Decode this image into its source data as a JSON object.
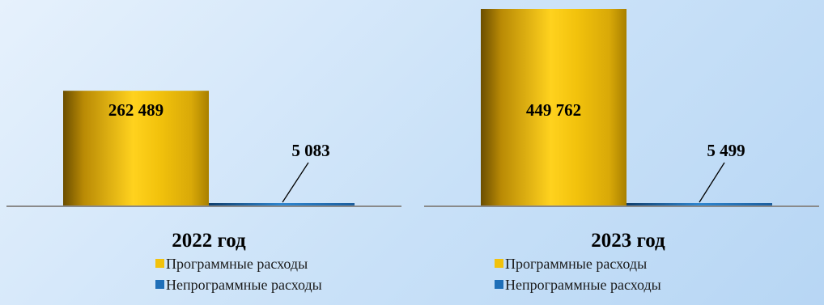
{
  "colors": {
    "programmatic": "#f2c20c",
    "non_programmatic": "#1f6fb8",
    "baseline": "#8a8a8a"
  },
  "chart_data": [
    {
      "type": "bar",
      "title": "2022 год",
      "categories": [
        "Программные расходы",
        "Непрограммные расходы"
      ],
      "values": [
        262489,
        5083
      ],
      "data_labels": [
        "262 489",
        "5 083"
      ],
      "legend": [
        "Программные расходы",
        "Непрограммные расходы"
      ]
    },
    {
      "type": "bar",
      "title": "2023 год",
      "categories": [
        "Программные расходы",
        "Непрограммные расходы"
      ],
      "values": [
        449762,
        5499
      ],
      "data_labels": [
        "449 762",
        "5 499"
      ],
      "legend": [
        "Программные расходы",
        "Непрограммные расходы"
      ]
    }
  ]
}
